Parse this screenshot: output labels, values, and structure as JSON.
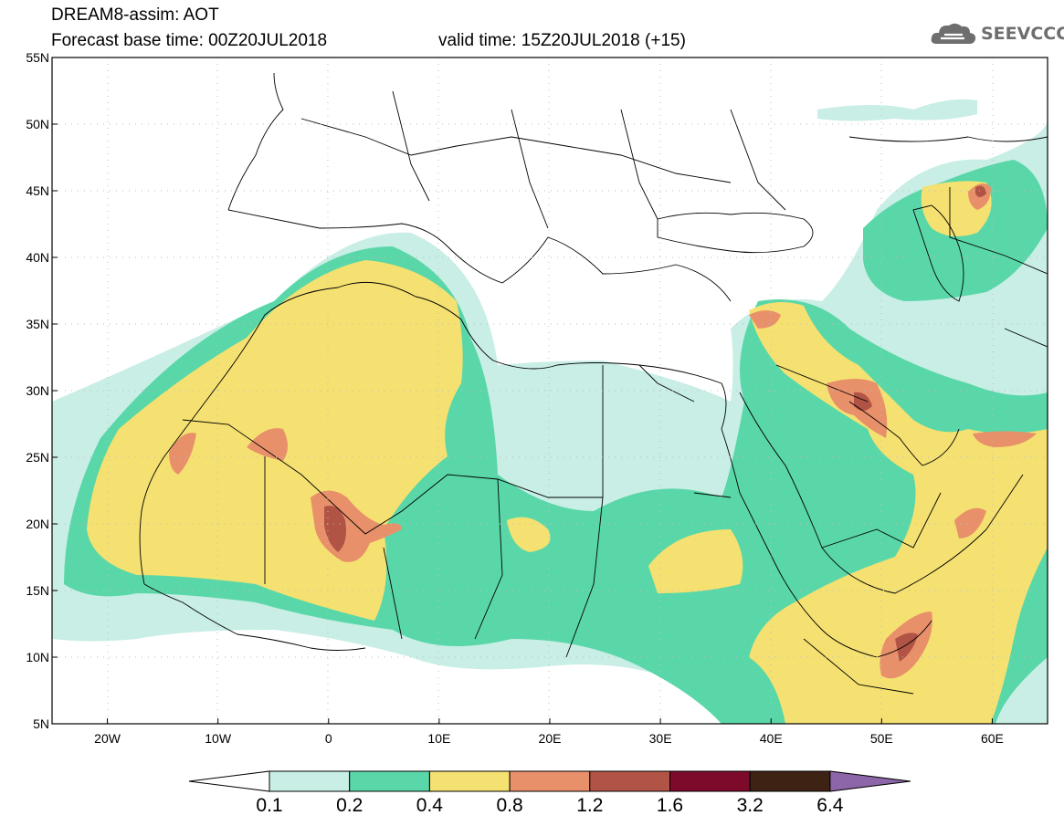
{
  "title": {
    "line1": "DREAM8-assim: AOT",
    "line2": "Forecast base time: 00Z20JUL2018",
    "line3": "valid time: 15Z20JUL2018 (+15)"
  },
  "logo": {
    "text": "SEEVCCC"
  },
  "map": {
    "lat_labels": [
      "55N",
      "50N",
      "45N",
      "40N",
      "35N",
      "30N",
      "25N",
      "20N",
      "15N",
      "10N",
      "5N"
    ],
    "lon_labels": [
      "20W",
      "10W",
      "0",
      "10E",
      "20E",
      "30E",
      "40E",
      "50E",
      "60E"
    ],
    "lat_range": [
      5,
      55
    ],
    "lon_range": [
      -25,
      65
    ]
  },
  "legend": {
    "levels": [
      "0.1",
      "0.2",
      "0.4",
      "0.8",
      "1.2",
      "1.6",
      "3.2",
      "6.4"
    ],
    "colors": [
      "#ffffff",
      "#c8eee6",
      "#5ad7a8",
      "#f5e171",
      "#e8906a",
      "#b15445",
      "#7d0a2a",
      "#3e2314",
      "#8c66a8"
    ]
  }
}
